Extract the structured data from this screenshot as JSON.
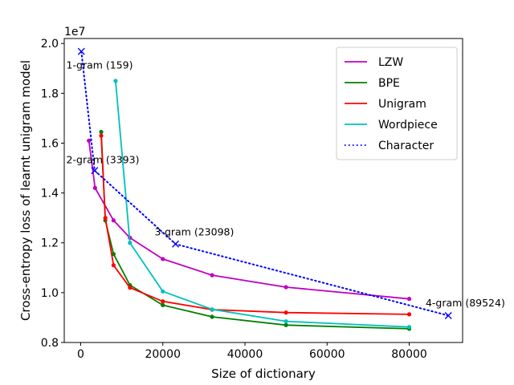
{
  "chart_data": {
    "type": "line",
    "xlabel": "Size of dictionary",
    "ylabel": "Cross-entropy loss of learnt unigram model",
    "y_offset_text": "1e7",
    "xlim": [
      -4000,
      93000
    ],
    "ylim": [
      0.8,
      2.02
    ],
    "xticks": [
      0,
      20000,
      40000,
      60000,
      80000
    ],
    "xtick_labels": [
      "0",
      "20000",
      "40000",
      "60000",
      "80000"
    ],
    "yticks": [
      0.8,
      1.0,
      1.2,
      1.4,
      1.6,
      1.8,
      2.0
    ],
    "ytick_labels": [
      "0.8",
      "1.0",
      "1.2",
      "1.4",
      "1.6",
      "1.8",
      "2.0"
    ],
    "legend_position": "top-right",
    "series": [
      {
        "name": "LZW",
        "color": "#bf00bf",
        "style": "solid",
        "marker": "dot",
        "x": [
          2000,
          3500,
          8000,
          12000,
          20000,
          32000,
          50000,
          80000
        ],
        "y": [
          1.61,
          1.42,
          1.29,
          1.22,
          1.135,
          1.07,
          1.022,
          0.975
        ]
      },
      {
        "name": "BPE",
        "color": "#008000",
        "style": "solid",
        "marker": "dot",
        "x": [
          5000,
          6000,
          8000,
          12000,
          20000,
          32000,
          50000,
          80000
        ],
        "y": [
          1.645,
          1.29,
          1.155,
          1.03,
          0.95,
          0.903,
          0.87,
          0.855
        ]
      },
      {
        "name": "Unigram",
        "color": "#ff0000",
        "style": "solid",
        "marker": "dot",
        "x": [
          5000,
          6000,
          8000,
          12000,
          20000,
          32000,
          50000,
          80000
        ],
        "y": [
          1.63,
          1.3,
          1.11,
          1.02,
          0.965,
          0.932,
          0.92,
          0.913
        ]
      },
      {
        "name": "Wordpiece",
        "color": "#00bfbf",
        "style": "solid",
        "marker": "dot",
        "x": [
          8500,
          12000,
          20000,
          32000,
          50000,
          80000
        ],
        "y": [
          1.85,
          1.2,
          1.005,
          0.933,
          0.885,
          0.862
        ]
      },
      {
        "name": "Character",
        "color": "#0000ff",
        "style": "dotted",
        "marker": "x",
        "x": [
          159,
          3393,
          23098,
          89524
        ],
        "y": [
          1.968,
          1.49,
          1.195,
          0.908
        ]
      }
    ],
    "annotations": [
      {
        "text": "1-gram (159)",
        "x": -3500,
        "y": 1.9
      },
      {
        "text": "2-gram (3393)",
        "x": -3500,
        "y": 1.52
      },
      {
        "text": "3-gram (23098)",
        "x": 18000,
        "y": 1.23
      },
      {
        "text": "4-gram (89524)",
        "x": 84000,
        "y": 0.945
      }
    ]
  }
}
